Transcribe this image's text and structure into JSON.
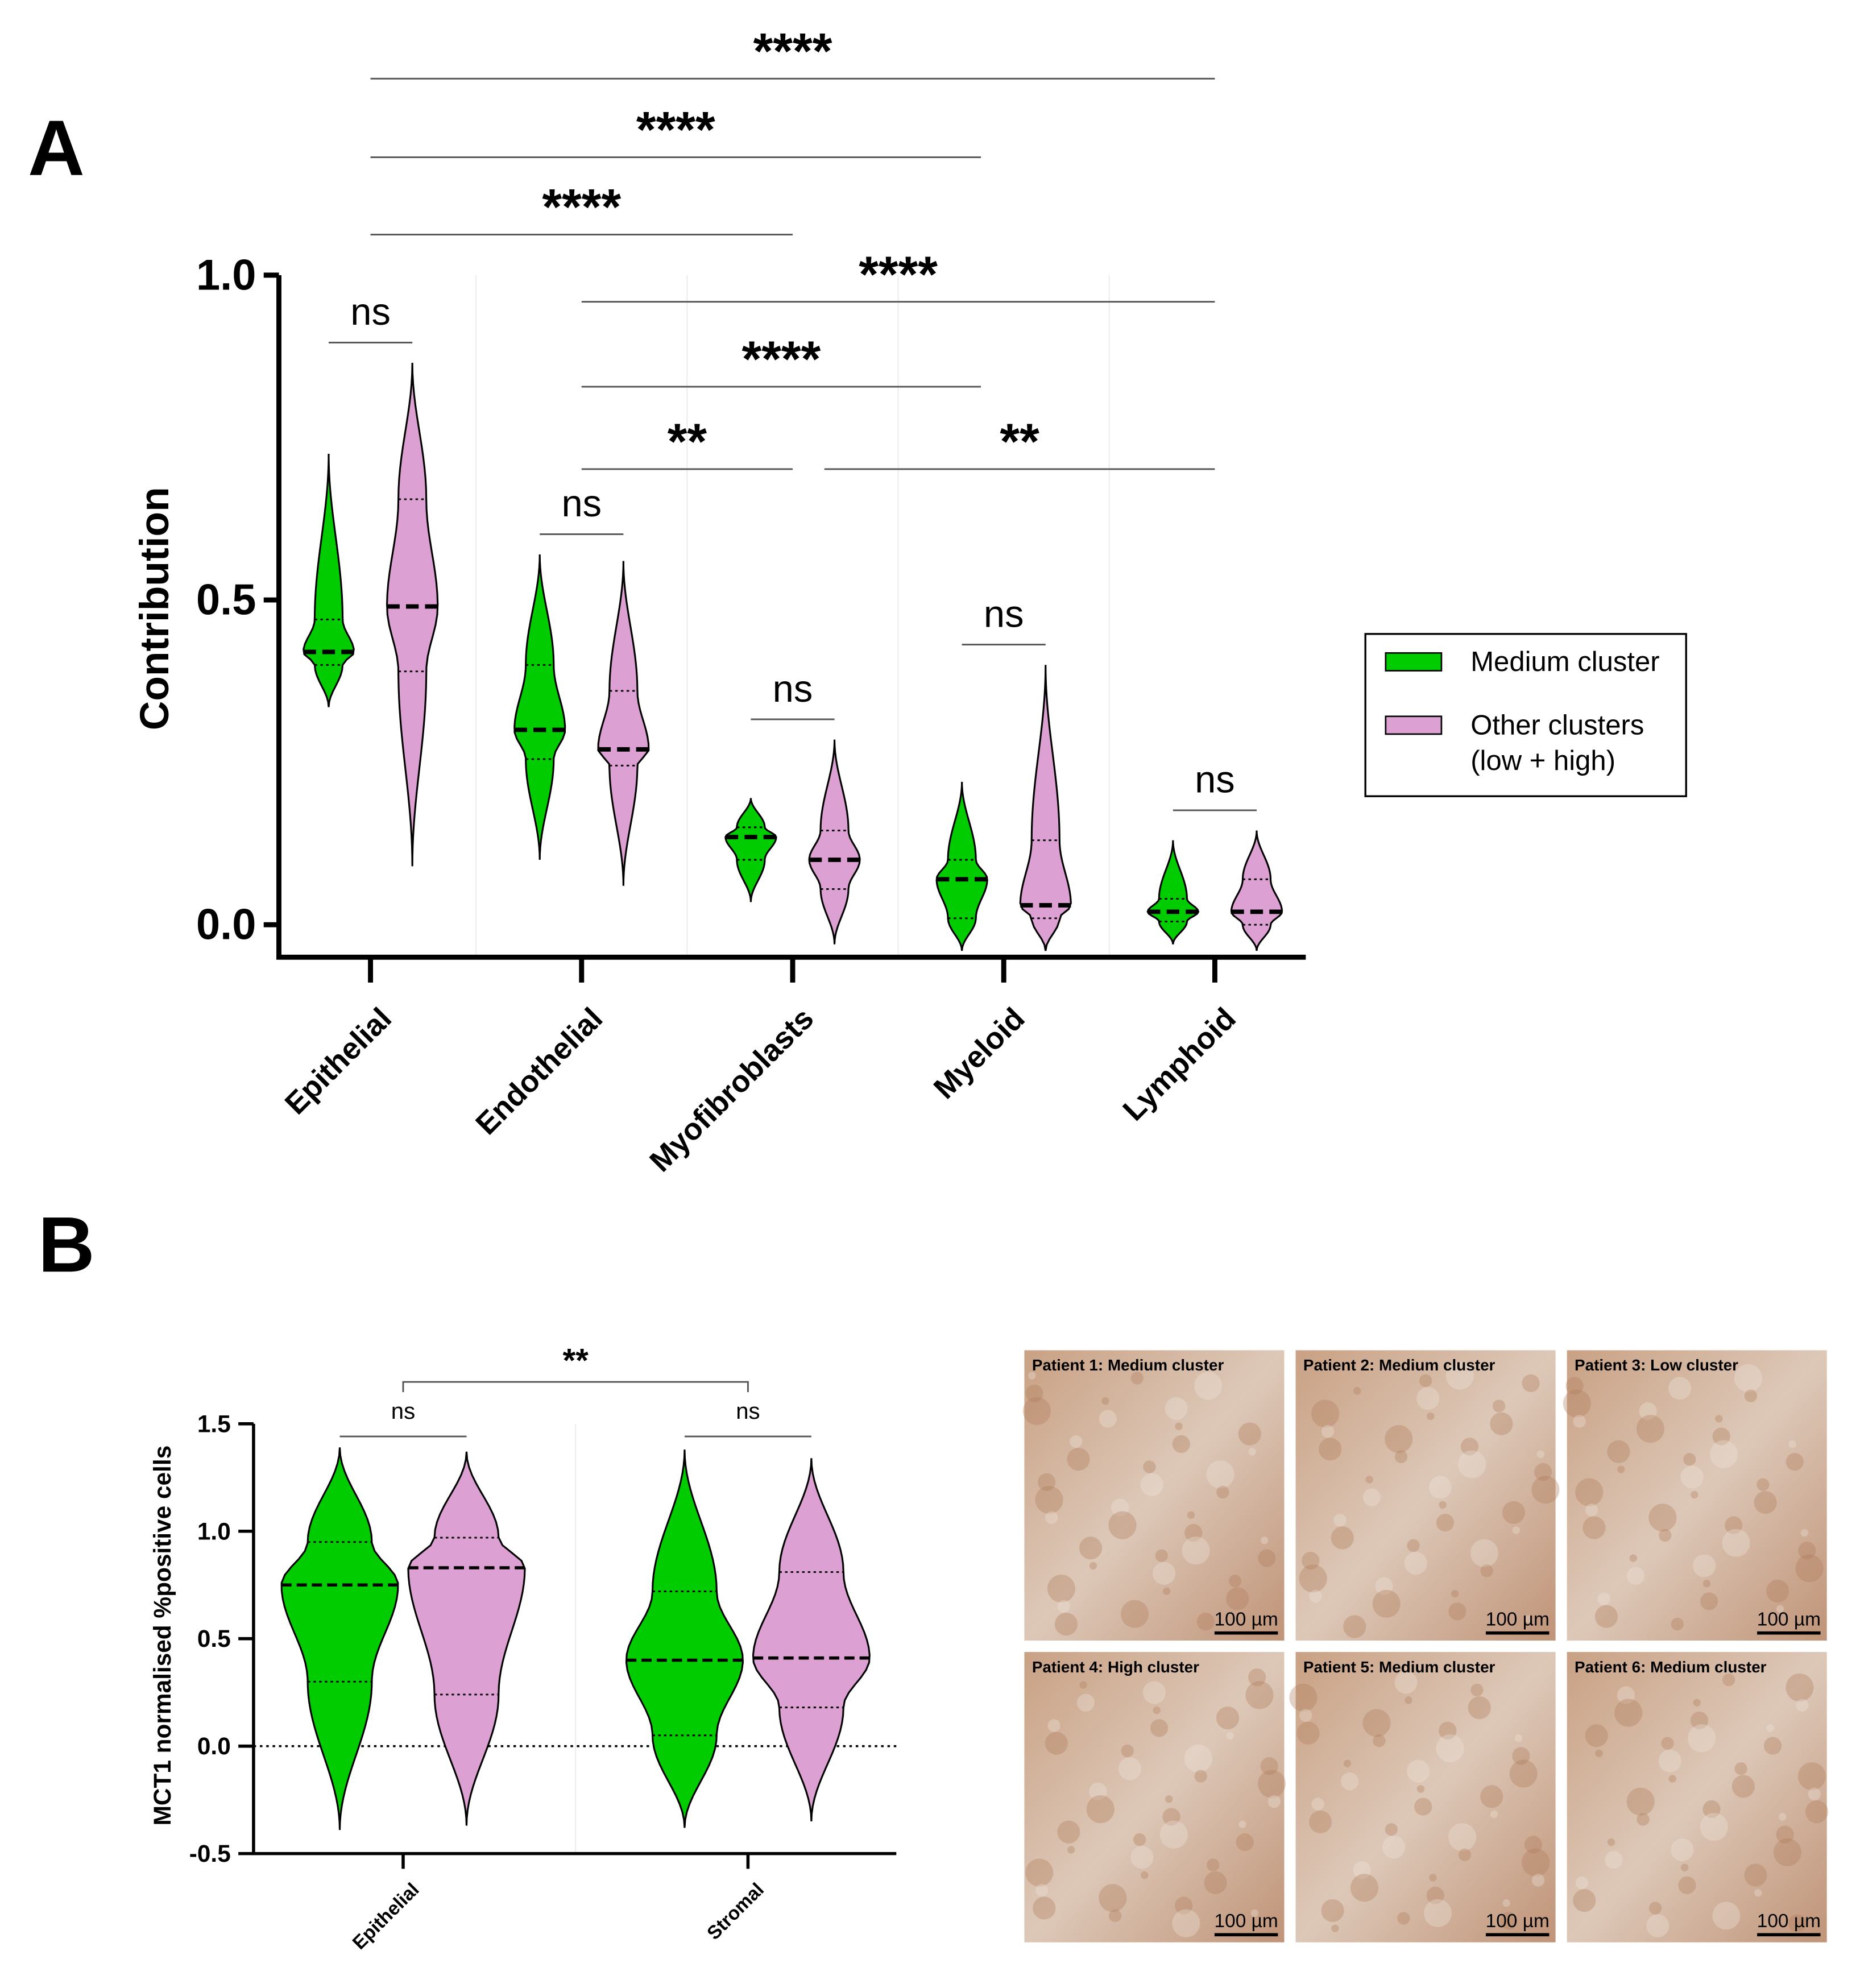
{
  "panel_labels": [
    "A",
    "B"
  ],
  "chart_data": [
    {
      "type": "violin",
      "y_label": "Contribution",
      "categories": [
        "Epithelial",
        "Endothelial",
        "Myofibroblasts",
        "Myeloid",
        "Lymphoid"
      ],
      "ylim": [
        -0.05,
        1.0
      ],
      "yticks": [
        {
          "value": 0,
          "label": "0.0"
        },
        {
          "value": 0.5,
          "label": "0.5"
        },
        {
          "value": 1,
          "label": "1.0"
        }
      ],
      "xgrid": true,
      "legend": "right",
      "series": [
        {
          "name": "Medium cluster",
          "color": "#00cc00",
          "min": [
            0.335,
            0.1,
            0.035,
            -0.04,
            -0.03
          ],
          "q1": [
            0.4,
            0.255,
            0.1,
            0.01,
            0.005
          ],
          "median": [
            0.42,
            0.3,
            0.135,
            0.07,
            0.02
          ],
          "q3": [
            0.47,
            0.4,
            0.15,
            0.1,
            0.04
          ],
          "max": [
            0.725,
            0.57,
            0.195,
            0.22,
            0.13
          ]
        },
        {
          "name": "Other clusters\n(low + high)",
          "color": "#dca0d2",
          "min": [
            0.09,
            0.06,
            -0.03,
            -0.04,
            -0.04
          ],
          "q1": [
            0.39,
            0.245,
            0.055,
            0.01,
            0.0
          ],
          "median": [
            0.49,
            0.27,
            0.1,
            0.03,
            0.02
          ],
          "q3": [
            0.655,
            0.36,
            0.145,
            0.13,
            0.07
          ],
          "max": [
            0.865,
            0.56,
            0.285,
            0.4,
            0.145
          ]
        }
      ],
      "series_comparisons": [
        "ns",
        "ns",
        "ns",
        "ns",
        "ns"
      ],
      "annotations": [
        {
          "label": "****",
          "from": 0,
          "to": 4
        },
        {
          "label": "****",
          "from": 0,
          "to": 3
        },
        {
          "label": "****",
          "from": 0,
          "to": 2
        },
        {
          "label": "****",
          "from": 1,
          "to": 4
        },
        {
          "label": "****",
          "from": 1,
          "to": 3
        },
        {
          "label": "**",
          "from": 1,
          "to": 2
        },
        {
          "label": "**",
          "from": 2,
          "to": 4
        }
      ]
    },
    {
      "type": "violin",
      "y_label": "MCT1 normalised %positive cells",
      "categories": [
        "Epithelial",
        "Stromal"
      ],
      "ylim": [
        -0.5,
        1.5
      ],
      "yticks": [
        {
          "value": -0.5,
          "label": "-0.5"
        },
        {
          "value": 0,
          "label": "0.0"
        },
        {
          "value": 0.5,
          "label": "0.5"
        },
        {
          "value": 1,
          "label": "1.0"
        },
        1.5
      ],
      "xgrid": true,
      "hline": 0,
      "series": [
        {
          "name": "Medium cluster",
          "color": "#00cc00",
          "min": [
            -0.39,
            -0.38
          ],
          "q1": [
            0.3,
            0.05
          ],
          "median": [
            0.75,
            0.4
          ],
          "q3": [
            0.95,
            0.72
          ],
          "max": [
            1.39,
            1.38
          ]
        },
        {
          "name": "Other clusters\n(low + high)",
          "color": "#dca0d2",
          "min": [
            -0.37,
            -0.35
          ],
          "q1": [
            0.24,
            0.18
          ],
          "median": [
            0.83,
            0.41
          ],
          "q3": [
            0.97,
            0.81
          ],
          "max": [
            1.37,
            1.34
          ]
        }
      ],
      "series_comparisons": [
        "ns",
        "ns"
      ],
      "annotations": [
        {
          "label": "**",
          "from": 0,
          "to": 1
        }
      ]
    }
  ],
  "images": [
    {
      "label": "Patient 1: Medium cluster",
      "scale": "100 µm"
    },
    {
      "label": "Patient 2: Medium cluster",
      "scale": "100 µm"
    },
    {
      "label": "Patient 3: Low cluster",
      "scale": "100 µm"
    },
    {
      "label": "Patient 4: High cluster",
      "scale": "100 µm"
    },
    {
      "label": "Patient 5: Medium cluster",
      "scale": "100 µm"
    },
    {
      "label": "Patient 6: Medium cluster",
      "scale": "100 µm"
    }
  ]
}
